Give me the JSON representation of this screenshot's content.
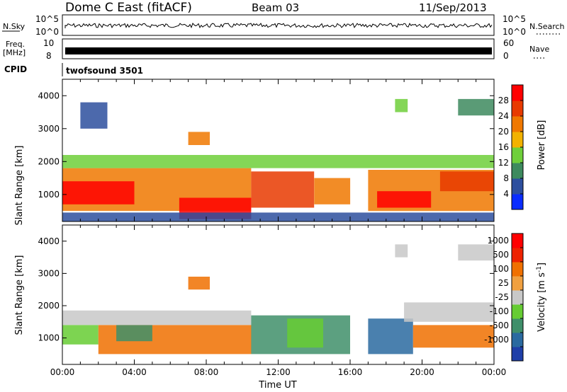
{
  "header": {
    "station": "Dome C East (fitACF)",
    "beam": "Beam 03",
    "date": "11/Sep/2013"
  },
  "strips": {
    "nsky_label": "N.Sky",
    "nsky_ticks": [
      "10^5",
      "10^0"
    ],
    "nsearch_label": "N.Search",
    "nsearch_ticks": [
      "10^5",
      "10^0"
    ],
    "freq_label": "Freq.",
    "freq_unit": "[MHz]",
    "freq_ticks": [
      "10",
      "8"
    ],
    "nave_label": "Nave",
    "nave_ticks": [
      "60",
      "0"
    ],
    "cpid_label": "CPID",
    "cpid_value": "twofsound 3501"
  },
  "chart_data": [
    {
      "type": "heatmap",
      "name": "power",
      "ylabel": "Slant Range [km]",
      "yticks": [
        1000,
        2000,
        3000,
        4000
      ],
      "ylim": [
        180,
        4500
      ],
      "xlim_hours": [
        0,
        24
      ],
      "colorbar_label": "Power [dB]",
      "colorbar_ticks": [
        "4",
        "8",
        "12",
        "16",
        "20",
        "24",
        "28"
      ],
      "colorbar_colors": [
        "#0a2cff",
        "#2d4f9e",
        "#3d8a5e",
        "#6fcf3a",
        "#f2b200",
        "#f07800",
        "#e83a00",
        "#ff0000"
      ],
      "cells": [
        {
          "t0": 0.0,
          "t1": 10.5,
          "r0": 500,
          "r1": 1800,
          "c": 5
        },
        {
          "t0": 10.5,
          "t1": 14.0,
          "r0": 600,
          "r1": 1700,
          "c": 6
        },
        {
          "t0": 14.0,
          "t1": 16.0,
          "r0": 700,
          "r1": 1500,
          "c": 5
        },
        {
          "t0": 17.0,
          "t1": 24.0,
          "r0": 500,
          "r1": 1750,
          "c": 5
        },
        {
          "t0": 6.5,
          "t1": 10.5,
          "r0": 250,
          "r1": 900,
          "c": 7
        },
        {
          "t0": 0.0,
          "t1": 4.0,
          "r0": 700,
          "r1": 1400,
          "c": 7
        },
        {
          "t0": 17.5,
          "t1": 20.5,
          "r0": 600,
          "r1": 1100,
          "c": 7
        },
        {
          "t0": 21.0,
          "t1": 24.0,
          "r0": 1100,
          "r1": 1700,
          "c": 6
        },
        {
          "t0": 7.0,
          "t1": 8.2,
          "r0": 2500,
          "r1": 2900,
          "c": 5
        },
        {
          "t0": 0.0,
          "t1": 24.0,
          "r0": 1800,
          "r1": 2200,
          "c": 3
        },
        {
          "t0": 18.5,
          "t1": 19.2,
          "r0": 3500,
          "r1": 3900,
          "c": 3
        },
        {
          "t0": 22.0,
          "t1": 24.0,
          "r0": 3400,
          "r1": 3900,
          "c": 2
        },
        {
          "t0": 1.0,
          "t1": 2.5,
          "r0": 3000,
          "r1": 3800,
          "c": 1
        },
        {
          "t0": 0.0,
          "t1": 24.0,
          "r0": 180,
          "r1": 450,
          "c": 1
        }
      ]
    },
    {
      "type": "heatmap",
      "name": "velocity",
      "ylabel": "Slant Range [km]",
      "yticks": [
        1000,
        2000,
        3000,
        4000
      ],
      "ylim": [
        180,
        4500
      ],
      "xlim_hours": [
        0,
        24
      ],
      "xlabel": "Time UT",
      "xticks": [
        "00:00",
        "04:00",
        "08:00",
        "12:00",
        "16:00",
        "20:00",
        "00:00"
      ],
      "colorbar_label": "Velocity [m s",
      "colorbar_label_sup": "-1",
      "colorbar_label_end": "]",
      "colorbar_ticks": [
        "1000",
        "500",
        "100",
        "25",
        "-25",
        "-100",
        "-500",
        "-1000"
      ],
      "colorbar_colors": [
        "#1f3fa8",
        "#2a6aa0",
        "#3f8f6a",
        "#66cc33",
        "#c8c8c8",
        "#f0a040",
        "#f07000",
        "#ee2200",
        "#ff0000"
      ],
      "cells": [
        {
          "t0": 0.0,
          "t1": 10.5,
          "r0": 1400,
          "r1": 1850,
          "c": 4
        },
        {
          "t0": 0.0,
          "t1": 2.0,
          "r0": 800,
          "r1": 1400,
          "c": 3
        },
        {
          "t0": 2.0,
          "t1": 10.5,
          "r0": 500,
          "r1": 1400,
          "c": 6
        },
        {
          "t0": 3.0,
          "t1": 5.0,
          "r0": 900,
          "r1": 1400,
          "c": 2
        },
        {
          "t0": 10.5,
          "t1": 16.0,
          "r0": 500,
          "r1": 1700,
          "c": 2
        },
        {
          "t0": 12.5,
          "t1": 14.5,
          "r0": 700,
          "r1": 1600,
          "c": 3
        },
        {
          "t0": 17.0,
          "t1": 19.5,
          "r0": 500,
          "r1": 1600,
          "c": 1
        },
        {
          "t0": 19.5,
          "t1": 24.0,
          "r0": 700,
          "r1": 1400,
          "c": 6
        },
        {
          "t0": 19.0,
          "t1": 24.0,
          "r0": 1500,
          "r1": 2100,
          "c": 4
        },
        {
          "t0": 7.0,
          "t1": 8.2,
          "r0": 2500,
          "r1": 2900,
          "c": 6
        },
        {
          "t0": 22.0,
          "t1": 24.0,
          "r0": 3400,
          "r1": 3900,
          "c": 4
        },
        {
          "t0": 18.5,
          "t1": 19.2,
          "r0": 3500,
          "r1": 3900,
          "c": 4
        }
      ]
    }
  ]
}
